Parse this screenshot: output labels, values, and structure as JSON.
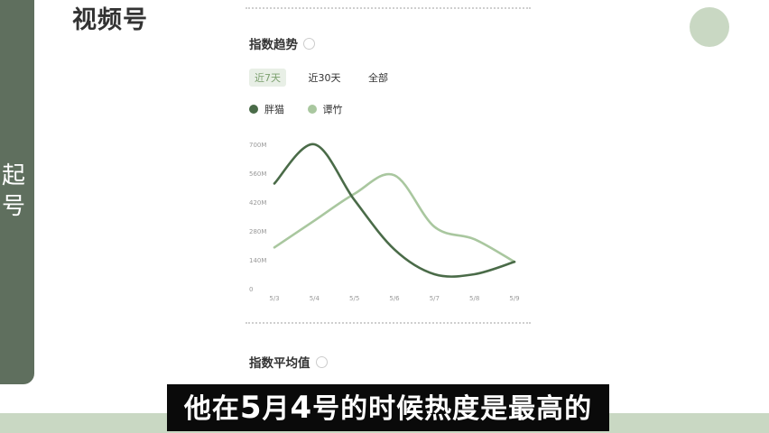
{
  "app": {
    "title": "视频号"
  },
  "sidebar_vertical": [
    "起",
    "号"
  ],
  "section1": {
    "title": "指数趋势"
  },
  "tabs": [
    {
      "label": "近7天",
      "active": true
    },
    {
      "label": "近30天",
      "active": false
    },
    {
      "label": "全部",
      "active": false
    }
  ],
  "legend": [
    {
      "label": "胖猫",
      "color": "#4a6b48"
    },
    {
      "label": "谭竹",
      "color": "#a9c79f"
    }
  ],
  "chart_data": {
    "type": "line",
    "x": [
      "5/3",
      "5/4",
      "5/5",
      "5/6",
      "5/7",
      "5/8",
      "5/9"
    ],
    "y_ticks": [
      "0",
      "140M",
      "280M",
      "420M",
      "560M",
      "700M"
    ],
    "ylim": [
      0,
      700
    ],
    "series": [
      {
        "name": "胖猫",
        "color": "#4a6b48",
        "values": [
          510,
          700,
          430,
          190,
          70,
          70,
          130
        ]
      },
      {
        "name": "谭竹",
        "color": "#a9c79f",
        "values": [
          200,
          330,
          460,
          550,
          300,
          240,
          130
        ]
      }
    ]
  },
  "section2": {
    "title": "指数平均值"
  },
  "caption": {
    "pre": "他在",
    "num1": "5",
    "mid1": "月",
    "num2": "4",
    "post": "号的时候热度是最高的"
  },
  "colors": {
    "accent": "#c9d8c3",
    "panel": "#5f6f5e"
  }
}
